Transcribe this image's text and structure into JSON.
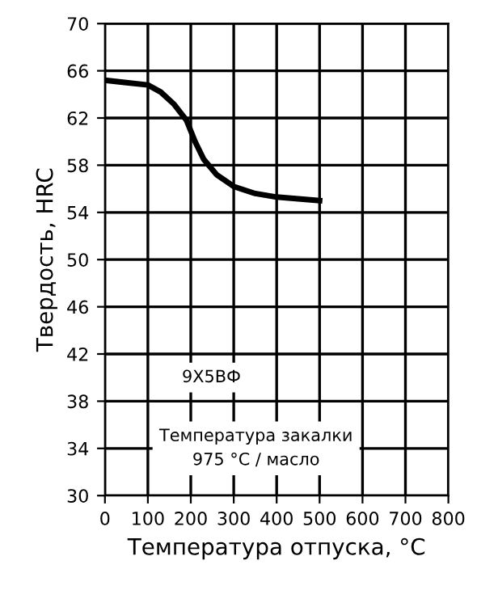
{
  "chart_data": {
    "type": "line",
    "xlabel": "Температура отпуска, °С",
    "ylabel": "Твердость, HRC",
    "x": [
      0,
      50,
      100,
      130,
      160,
      190,
      210,
      230,
      260,
      300,
      350,
      400,
      500
    ],
    "series": [
      {
        "color": "#000000",
        "values": [
          65.2,
          65.0,
          64.8,
          64.2,
          63.2,
          61.8,
          60.0,
          58.5,
          57.2,
          56.2,
          55.6,
          55.3,
          55.0
        ]
      }
    ],
    "xlim": [
      0,
      800
    ],
    "xticks": [
      0,
      100,
      200,
      300,
      400,
      500,
      600,
      700,
      800
    ],
    "ylim": [
      30,
      70
    ],
    "yticks": [
      30,
      34,
      38,
      42,
      46,
      50,
      54,
      58,
      62,
      66,
      70
    ],
    "grid": true,
    "marker": "none",
    "line_style": "solid",
    "annotations": [
      "9Х5ВФ",
      "Температура закалки\n975 °С / масло"
    ]
  }
}
